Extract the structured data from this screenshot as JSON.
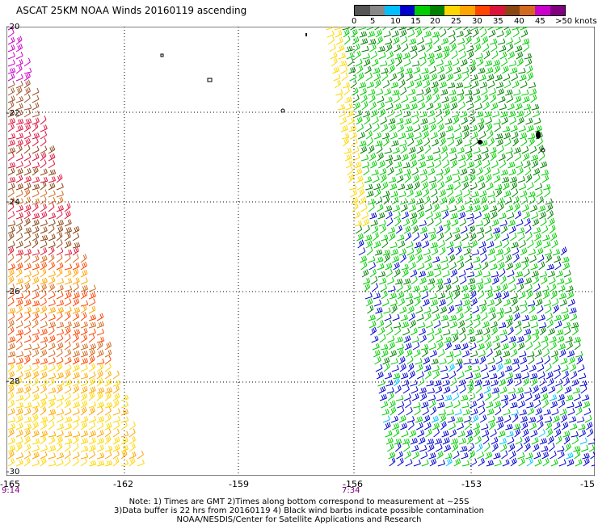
{
  "title": "ASCAT 25KM NOAA Winds 20160119 ascending",
  "legend": {
    "ticks": [
      "0",
      "5",
      "10",
      "15",
      "20",
      "25",
      "30",
      "35",
      "40",
      "45",
      ">50 knots"
    ],
    "colors": [
      "#555555",
      "#888888",
      "#00bfff",
      "#0000cd",
      "#00cc00",
      "#008000",
      "#ffd700",
      "#ffa500",
      "#ff4500",
      "#dc143c",
      "#8b4513",
      "#d2691e",
      "#cc00cc",
      "#800080"
    ]
  },
  "axes": {
    "lon_labels": [
      "-165",
      "-162",
      "-159",
      "-156",
      "-153",
      "-15"
    ],
    "lat_labels": [
      "-20",
      "-22",
      "-24",
      "-26",
      "-28",
      "-30"
    ]
  },
  "times": [
    "9:14",
    "7:34"
  ],
  "notes": [
    "Note: 1) Times are GMT 2)Times along bottom correspond to measurement at ~25S",
    "3)Data buffer is 22 hrs from 20160119 4) Black wind barbs indicate possible contamination",
    "NOAA/NESDIS/Center for Satellite Applications and Research"
  ]
}
